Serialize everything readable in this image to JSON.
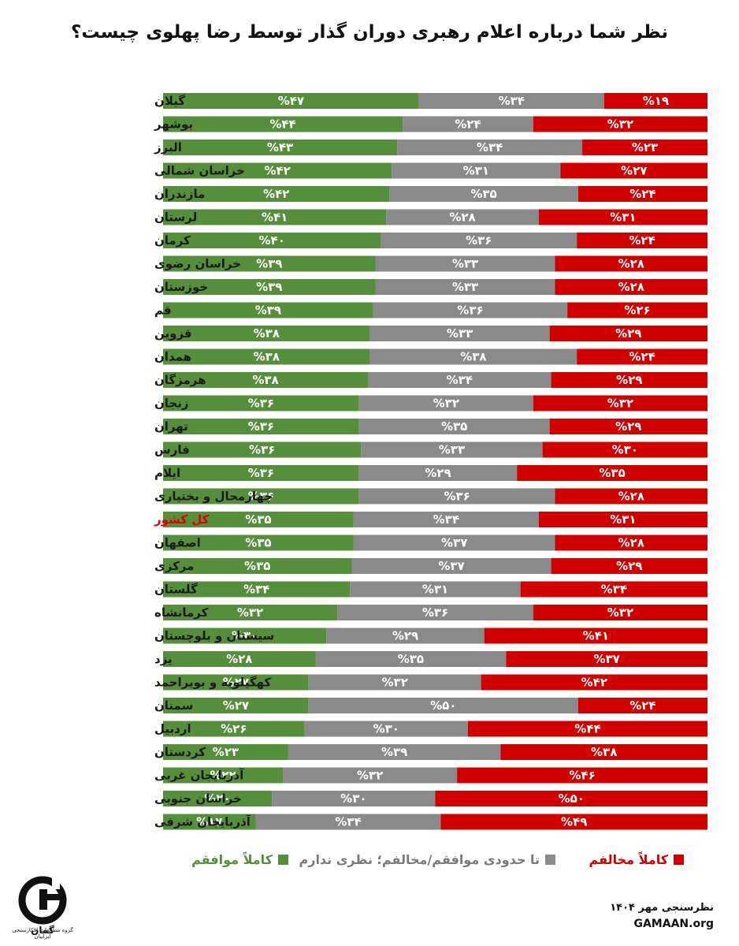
{
  "title": "نظر شما درباره اعلام رهبری دوران گذار توسط رضا پهلوی چیست؟",
  "colors": {
    "agree": "#568f3c",
    "neutral": "#8a8a8a",
    "oppose": "#d10000",
    "highlight_label": "#e00000"
  },
  "legend": {
    "agree": "کاملاً موافقم",
    "neutral": "تا حدودی موافقم/مخالفم؛ نظری ندارم",
    "oppose": "کاملاً مخالفم"
  },
  "footer": {
    "source": "نظرسنجی مهر ۱۴۰۴",
    "url": "GAMAAN.org",
    "logo_text": "گمان",
    "logo_caption": "گروه مطالعات افکارسنجی ایرانیان",
    "logo_icon": "gamaan-logo-icon"
  },
  "chart_data": {
    "type": "bar",
    "orientation": "horizontal",
    "stacked": true,
    "percent_stacked": true,
    "categories": [
      "گیلان",
      "بوشهر",
      "البرز",
      "خراسان شمالی",
      "مازندران",
      "لرستان",
      "کرمان",
      "خراسان رضوی",
      "خوزستان",
      "قم",
      "قزوین",
      "همدان",
      "هرمزگان",
      "زنجان",
      "تهران",
      "فارس",
      "ایلام",
      "چهارمحال و بختیاری",
      "کل کشور",
      "اصفهان",
      "مرکزی",
      "گلستان",
      "کرمانشاه",
      "سیستان و بلوچستان",
      "یزد",
      "کهگیلویه و بویراحمد",
      "سمنان",
      "اردبیل",
      "کردستان",
      "آذربایجان غربی",
      "خراسان جنوبی",
      "آذربایجان شرقی"
    ],
    "highlight_category": "کل کشور",
    "series": [
      {
        "name": "کاملاً موافقم",
        "color": "#568f3c",
        "values": [
          47,
          44,
          43,
          42,
          42,
          41,
          40,
          39,
          39,
          39,
          38,
          38,
          38,
          36,
          36,
          36,
          36,
          36,
          35,
          35,
          35,
          34,
          32,
          30,
          28,
          27,
          27,
          26,
          23,
          22,
          20,
          17
        ]
      },
      {
        "name": "تا حدودی موافقم/مخالفم؛ نظری ندارم",
        "color": "#8a8a8a",
        "values": [
          34,
          24,
          34,
          31,
          35,
          28,
          36,
          33,
          33,
          36,
          33,
          38,
          34,
          32,
          35,
          33,
          29,
          36,
          34,
          37,
          37,
          31,
          36,
          29,
          35,
          32,
          50,
          30,
          39,
          32,
          30,
          34
        ]
      },
      {
        "name": "کاملاً مخالفم",
        "color": "#d10000",
        "values": [
          19,
          32,
          23,
          27,
          24,
          31,
          24,
          28,
          28,
          26,
          29,
          24,
          29,
          32,
          29,
          30,
          35,
          28,
          31,
          28,
          29,
          34,
          32,
          41,
          37,
          42,
          24,
          44,
          38,
          46,
          50,
          49
        ]
      }
    ],
    "value_labels": [
      [
        "%۴۷",
        "%۳۴",
        "%۱۹"
      ],
      [
        "%۴۴",
        "%۲۴",
        "%۳۲"
      ],
      [
        "%۴۳",
        "%۳۴",
        "%۲۳"
      ],
      [
        "%۴۲",
        "%۳۱",
        "%۲۷"
      ],
      [
        "%۴۲",
        "%۳۵",
        "%۲۴"
      ],
      [
        "%۴۱",
        "%۲۸",
        "%۳۱"
      ],
      [
        "%۴۰",
        "%۳۶",
        "%۲۴"
      ],
      [
        "%۳۹",
        "%۳۳",
        "%۲۸"
      ],
      [
        "%۳۹",
        "%۳۳",
        "%۲۸"
      ],
      [
        "%۳۹",
        "%۳۶",
        "%۲۶"
      ],
      [
        "%۳۸",
        "%۳۳",
        "%۲۹"
      ],
      [
        "%۳۸",
        "%۳۸",
        "%۲۴"
      ],
      [
        "%۳۸",
        "%۳۴",
        "%۲۹"
      ],
      [
        "%۳۶",
        "%۳۲",
        "%۳۲"
      ],
      [
        "%۳۶",
        "%۳۵",
        "%۲۹"
      ],
      [
        "%۳۶",
        "%۳۳",
        "%۳۰"
      ],
      [
        "%۳۶",
        "%۲۹",
        "%۳۵"
      ],
      [
        "%۳۶",
        "%۳۶",
        "%۲۸"
      ],
      [
        "%۳۵",
        "%۳۴",
        "%۳۱"
      ],
      [
        "%۳۵",
        "%۳۷",
        "%۲۸"
      ],
      [
        "%۳۵",
        "%۳۷",
        "%۲۹"
      ],
      [
        "%۳۴",
        "%۳۱",
        "%۳۴"
      ],
      [
        "%۳۲",
        "%۳۶",
        "%۳۲"
      ],
      [
        "%۳۰",
        "%۲۹",
        "%۴۱"
      ],
      [
        "%۲۸",
        "%۳۵",
        "%۳۷"
      ],
      [
        "%۲۷",
        "%۳۲",
        "%۴۲"
      ],
      [
        "%۲۷",
        "%۵۰",
        "%۲۴"
      ],
      [
        "%۲۶",
        "%۳۰",
        "%۴۴"
      ],
      [
        "%۲۳",
        "%۳۹",
        "%۳۸"
      ],
      [
        "%۲۲",
        "%۳۲",
        "%۴۶"
      ],
      [
        "%۲۰",
        "%۳۰",
        "%۵۰"
      ],
      [
        "%۱۷",
        "%۳۴",
        "%۴۹"
      ]
    ],
    "xlim": [
      0,
      100
    ],
    "grid": false,
    "legend_position": "bottom"
  }
}
